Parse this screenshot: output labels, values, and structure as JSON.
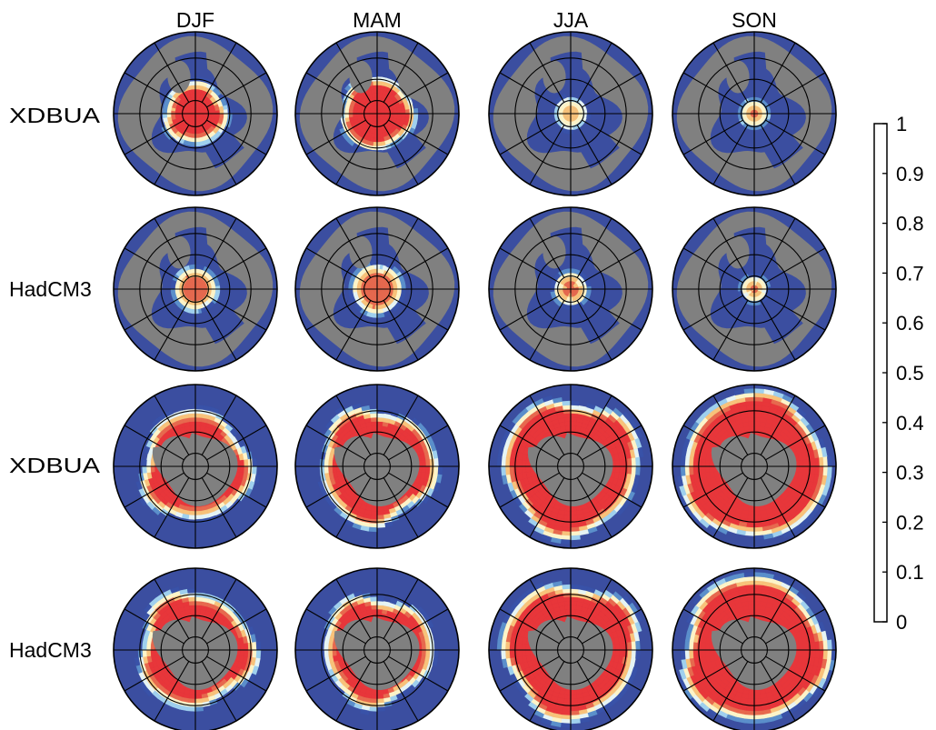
{
  "chart_data": {
    "type": "heatmap",
    "subtype": "polar-stereographic sea-ice concentration maps",
    "columns": [
      "DJF",
      "MAM",
      "JJA",
      "SON"
    ],
    "rows": [
      "XDBUA",
      "HadCM3",
      "XDBUA",
      "HadCM3"
    ],
    "hemisphere_by_row": [
      "north",
      "north",
      "south",
      "south"
    ],
    "land_color": "#808080",
    "colorbar": {
      "min": 0,
      "max": 1,
      "ticks": [
        "0",
        "0.1",
        "0.2",
        "0.3",
        "0.4",
        "0.5",
        "0.6",
        "0.7",
        "0.8",
        "0.9",
        "1"
      ],
      "colors": [
        "#3b4ea0",
        "#3952a8",
        "#5b8fcb",
        "#9fd0ee",
        "#e6f4f4",
        "#fdf4c8",
        "#f8c27a",
        "#e7694e",
        "#e8363a",
        "#a51e25"
      ]
    },
    "panels": [
      {
        "row": 0,
        "col": 0,
        "ice_extent": 0.36,
        "cap": 0.84,
        "irregularity": 0.06,
        "phase": 0.4
      },
      {
        "row": 0,
        "col": 1,
        "ice_extent": 0.42,
        "cap": 0.88,
        "irregularity": 0.06,
        "phase": 1.2
      },
      {
        "row": 0,
        "col": 2,
        "ice_extent": 0.16,
        "cap": 0.68,
        "irregularity": 0.05,
        "phase": 2.1
      },
      {
        "row": 0,
        "col": 3,
        "ice_extent": 0.14,
        "cap": 0.72,
        "irregularity": 0.04,
        "phase": 0.9
      },
      {
        "row": 1,
        "col": 0,
        "ice_extent": 0.24,
        "cap": 0.74,
        "irregularity": 0.05,
        "phase": 1.7
      },
      {
        "row": 1,
        "col": 1,
        "ice_extent": 0.28,
        "cap": 0.76,
        "irregularity": 0.05,
        "phase": 2.6
      },
      {
        "row": 1,
        "col": 2,
        "ice_extent": 0.18,
        "cap": 0.7,
        "irregularity": 0.05,
        "phase": 0.2
      },
      {
        "row": 1,
        "col": 3,
        "ice_extent": 0.13,
        "cap": 0.7,
        "irregularity": 0.04,
        "phase": 3.3
      },
      {
        "row": 2,
        "col": 0,
        "ice_extent": 0.64,
        "cap": 0.8,
        "irregularity": 0.08,
        "phase": 0.6
      },
      {
        "row": 2,
        "col": 1,
        "ice_extent": 0.68,
        "cap": 0.82,
        "irregularity": 0.08,
        "phase": 1.9
      },
      {
        "row": 2,
        "col": 2,
        "ice_extent": 0.8,
        "cap": 0.86,
        "irregularity": 0.07,
        "phase": 2.8
      },
      {
        "row": 2,
        "col": 3,
        "ice_extent": 0.86,
        "cap": 0.86,
        "irregularity": 0.05,
        "phase": 0.1
      },
      {
        "row": 3,
        "col": 0,
        "ice_extent": 0.68,
        "cap": 0.8,
        "irregularity": 0.08,
        "phase": 1.3
      },
      {
        "row": 3,
        "col": 1,
        "ice_extent": 0.64,
        "cap": 0.82,
        "irregularity": 0.08,
        "phase": 2.2
      },
      {
        "row": 3,
        "col": 2,
        "ice_extent": 0.8,
        "cap": 0.84,
        "irregularity": 0.07,
        "phase": 3.0
      },
      {
        "row": 3,
        "col": 3,
        "ice_extent": 0.86,
        "cap": 0.84,
        "irregularity": 0.06,
        "phase": 0.7
      }
    ]
  }
}
